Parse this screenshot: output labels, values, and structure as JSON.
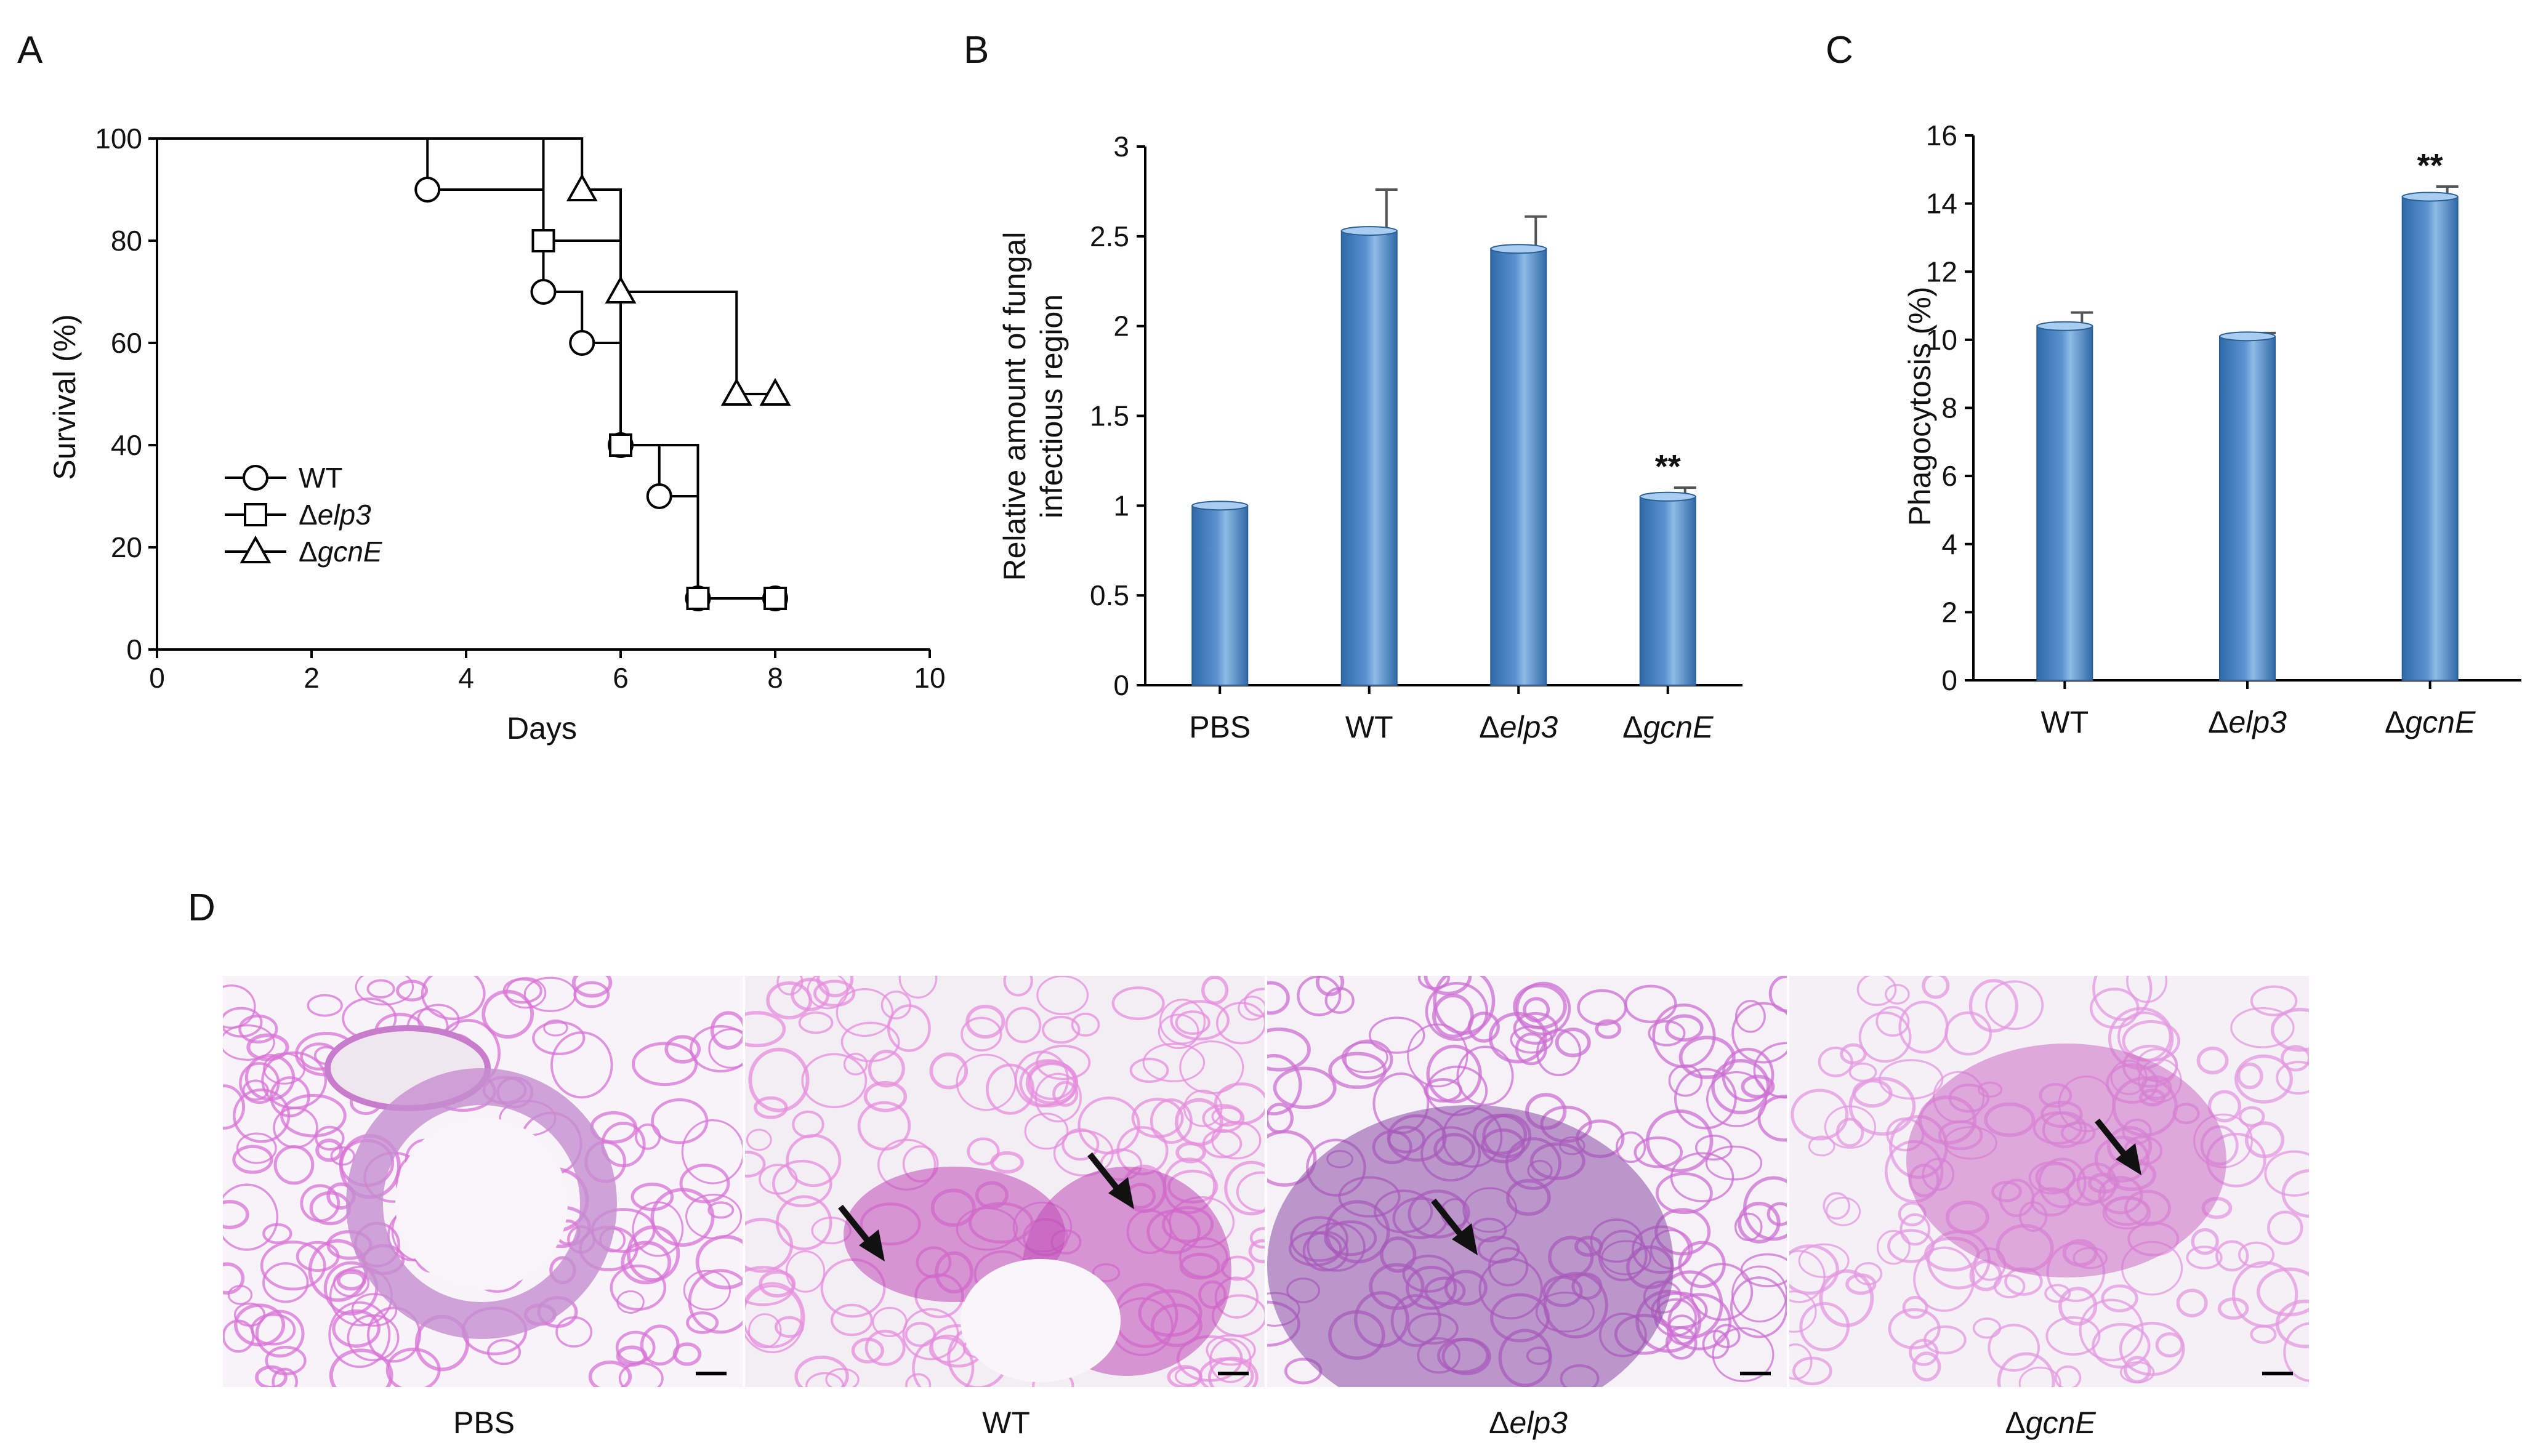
{
  "panels": {
    "A": {
      "letter": "A",
      "chart_data": {
        "type": "line",
        "title": "",
        "xlabel": "Days",
        "ylabel": "Survival (%)",
        "xlim": [
          0,
          10
        ],
        "ylim": [
          0,
          100
        ],
        "xticks": [
          0,
          2,
          4,
          6,
          8,
          10
        ],
        "yticks": [
          0,
          20,
          40,
          60,
          80,
          100
        ],
        "legend_placement": "lower-left",
        "series": [
          {
            "name": "WT",
            "name_prefix": "",
            "name_italic": "",
            "marker": "circle",
            "step_points": [
              [
                0,
                100
              ],
              [
                3.5,
                100
              ],
              [
                3.5,
                90
              ],
              [
                5,
                90
              ],
              [
                5,
                70
              ],
              [
                5.5,
                70
              ],
              [
                5.5,
                60
              ],
              [
                6,
                60
              ],
              [
                6,
                40
              ],
              [
                6.5,
                40
              ],
              [
                6.5,
                30
              ],
              [
                7,
                30
              ],
              [
                7,
                10
              ],
              [
                8,
                10
              ]
            ],
            "markers": [
              [
                3.5,
                90
              ],
              [
                5,
                70
              ],
              [
                5.5,
                60
              ],
              [
                6,
                40
              ],
              [
                6.5,
                30
              ],
              [
                7,
                10
              ],
              [
                8,
                10
              ]
            ]
          },
          {
            "name": "Δelp3",
            "name_prefix": "Δ",
            "name_italic": "elp3",
            "marker": "square",
            "step_points": [
              [
                0,
                100
              ],
              [
                5,
                100
              ],
              [
                5,
                80
              ],
              [
                6,
                80
              ],
              [
                6,
                40
              ],
              [
                7,
                40
              ],
              [
                7,
                10
              ],
              [
                8,
                10
              ]
            ],
            "markers": [
              [
                5,
                80
              ],
              [
                6,
                40
              ],
              [
                7,
                10
              ],
              [
                8,
                10
              ]
            ]
          },
          {
            "name": "ΔgcnE",
            "name_prefix": "Δ",
            "name_italic": "gcnE",
            "marker": "triangle",
            "step_points": [
              [
                0,
                100
              ],
              [
                5.5,
                100
              ],
              [
                5.5,
                90
              ],
              [
                6,
                90
              ],
              [
                6,
                70
              ],
              [
                7.5,
                70
              ],
              [
                7.5,
                50
              ],
              [
                8,
                50
              ]
            ],
            "markers": [
              [
                5.5,
                90
              ],
              [
                6,
                70
              ],
              [
                7.5,
                50
              ],
              [
                8,
                50
              ]
            ]
          }
        ]
      }
    },
    "B": {
      "letter": "B",
      "chart_data": {
        "type": "bar",
        "title": "",
        "ylabel_lines": [
          "Relative amount of fungal",
          "infectious region"
        ],
        "ylim": [
          0,
          3
        ],
        "yticks": [
          0,
          0.5,
          1,
          1.5,
          2,
          2.5,
          3
        ],
        "ytick_labels": [
          "0",
          "0.5",
          "1",
          "1.5",
          "2",
          "2.5",
          "3"
        ],
        "categories": [
          {
            "label": "PBS",
            "prefix": "",
            "italic": ""
          },
          {
            "label": "WT",
            "prefix": "",
            "italic": ""
          },
          {
            "label": "Δelp3",
            "prefix": "Δ",
            "italic": "elp3"
          },
          {
            "label": "ΔgcnE",
            "prefix": "Δ",
            "italic": "gcnE"
          }
        ],
        "values": [
          1.0,
          2.53,
          2.43,
          1.05
        ],
        "errors": [
          0.0,
          0.23,
          0.18,
          0.05
        ],
        "significance": [
          "",
          "",
          "",
          "**"
        ],
        "bar_color": "#5b93d0"
      }
    },
    "C": {
      "letter": "C",
      "chart_data": {
        "type": "bar",
        "title": "",
        "ylabel": "Phagocytosis (%)",
        "ylim": [
          0,
          16
        ],
        "yticks": [
          0,
          2,
          4,
          6,
          8,
          10,
          12,
          14,
          16
        ],
        "categories": [
          {
            "label": "WT",
            "prefix": "",
            "italic": ""
          },
          {
            "label": "Δelp3",
            "prefix": "Δ",
            "italic": "elp3"
          },
          {
            "label": "ΔgcnE",
            "prefix": "Δ",
            "italic": "gcnE"
          }
        ],
        "values": [
          10.4,
          10.1,
          14.2
        ],
        "errors": [
          0.4,
          0.1,
          0.3
        ],
        "significance": [
          "",
          "",
          "**"
        ],
        "bar_color": "#5b93d0"
      }
    },
    "D": {
      "letter": "D",
      "images": [
        {
          "label": "PBS",
          "prefix": "",
          "italic": "",
          "arrows": 0,
          "tissue_color": "#d873d6",
          "background": "#f7f3f8",
          "lesion": ""
        },
        {
          "label": "WT",
          "prefix": "",
          "italic": "",
          "arrows": 2,
          "tissue_color": "#e58ddd",
          "background": "#f3eef4",
          "lesion": "#c04bb8"
        },
        {
          "label": "Δelp3",
          "prefix": "Δ",
          "italic": "elp3",
          "arrows": 1,
          "tissue_color": "#cc6fd2",
          "background": "#f5f1f7",
          "lesion": "#8a4aa8"
        },
        {
          "label": "ΔgcnE",
          "prefix": "Δ",
          "italic": "gcnE",
          "arrows": 1,
          "tissue_color": "#e39ae0",
          "background": "#f5f0f5",
          "lesion": "#cc6dc6"
        }
      ]
    }
  }
}
